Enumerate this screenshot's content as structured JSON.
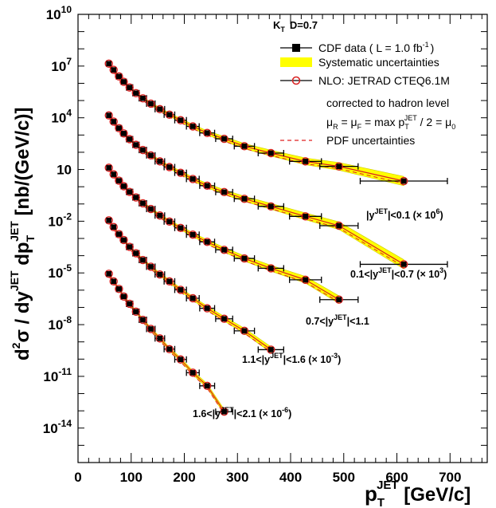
{
  "chart_data": {
    "type": "scatter",
    "title": "",
    "header": {
      "kt": "K",
      "kt_sub": "T",
      "d": "D=0.7"
    },
    "xlabel": {
      "main": "p",
      "sub": "T",
      "sup": "JET",
      "unit": " [GeV/c]"
    },
    "ylabel": {
      "d2": "d",
      "d2sup": "2",
      "sigma": "σ / dy",
      "jet1": "JET",
      "dpt": " dp",
      "t": "T",
      "jet2": "JET",
      "unit": " [nb/(GeV/c)]"
    },
    "xlim": [
      0,
      770
    ],
    "ylim_log10": [
      -16,
      10
    ],
    "x_scale": "linear",
    "y_scale": "log",
    "x_ticks": [
      "0",
      "100",
      "200",
      "300",
      "400",
      "500",
      "600",
      "700"
    ],
    "y_ticks": [
      {
        "base": "10",
        "exp": "10"
      },
      {
        "base": "10",
        "exp": "7"
      },
      {
        "base": "10",
        "exp": "4"
      },
      {
        "base": "10",
        "exp": ""
      },
      {
        "base": "10",
        "exp": "-2"
      },
      {
        "base": "10",
        "exp": "-5"
      },
      {
        "base": "10",
        "exp": "-8"
      },
      {
        "base": "10",
        "exp": "-11"
      },
      {
        "base": "10",
        "exp": "-14"
      }
    ],
    "legend": {
      "placement": "top-right",
      "entries": [
        {
          "kind": "data",
          "label": "CDF data ( L = 1.0 fb",
          "sup": "-1",
          "tail": ")"
        },
        {
          "kind": "band",
          "label": "Systematic uncertainties"
        },
        {
          "kind": "nlo",
          "label": "NLO: JETRAD CTEQ6.1M"
        },
        {
          "kind": "text",
          "label": "corrected to hadron level"
        },
        {
          "kind": "scale",
          "label": "μ_R = μ_F = max p_T^JET / 2 = μ_0"
        },
        {
          "kind": "pdf",
          "label": "PDF uncertainties"
        }
      ]
    },
    "colors": {
      "band": "#ffff00",
      "band_edge": "#cccc00",
      "nlo": "#d82020",
      "data": "#000000",
      "pdf": "#e02020"
    },
    "series": [
      {
        "name": "|y^JET|<0.1 (×10^6)",
        "label": {
          "pre": "|y",
          "sup1": "JET",
          "post": "|<0.1 (× 10",
          "sup2": "6",
          "tail": ")"
        },
        "x": [
          58,
          67,
          77,
          86,
          97,
          109,
          122,
          137,
          154,
          172,
          193,
          216,
          243,
          275,
          313,
          363,
          428,
          491,
          613
        ],
        "xerr": [
          4,
          4,
          5,
          5,
          6,
          6,
          7,
          8,
          9,
          10,
          11,
          12,
          14,
          16,
          19,
          24,
          30,
          36,
          82
        ],
        "log10_y": [
          7.14,
          6.78,
          6.4,
          6.09,
          5.76,
          5.43,
          5.13,
          4.82,
          4.5,
          4.18,
          3.86,
          3.5,
          3.12,
          2.78,
          2.35,
          1.95,
          1.47,
          1.18,
          0.33
        ]
      },
      {
        "name": "0.1<|y^JET|<0.7 (×10^3)",
        "label": {
          "pre": "0.1<|y",
          "sup1": "JET",
          "post": "|<0.7 (× 10",
          "sup2": "3",
          "tail": ")"
        },
        "x": [
          58,
          67,
          77,
          86,
          97,
          109,
          122,
          137,
          154,
          172,
          193,
          216,
          243,
          275,
          313,
          363,
          428,
          491,
          613
        ],
        "xerr": [
          4,
          4,
          5,
          5,
          6,
          6,
          7,
          8,
          9,
          10,
          11,
          12,
          14,
          16,
          19,
          24,
          30,
          36,
          82
        ],
        "log10_y": [
          4.14,
          3.78,
          3.4,
          3.09,
          2.76,
          2.43,
          2.13,
          1.82,
          1.47,
          1.14,
          0.81,
          0.45,
          0.06,
          -0.31,
          -0.7,
          -1.14,
          -1.72,
          -2.26,
          -4.5
        ]
      },
      {
        "name": "0.7<|y^JET|<1.1",
        "label": {
          "pre": "0.7<|y",
          "sup1": "JET",
          "post": "|<1.1",
          "sup2": "",
          "tail": ""
        },
        "x": [
          58,
          67,
          77,
          86,
          97,
          109,
          122,
          137,
          154,
          172,
          193,
          216,
          243,
          275,
          313,
          363,
          428,
          491
        ],
        "xerr": [
          4,
          4,
          5,
          5,
          6,
          6,
          7,
          8,
          9,
          10,
          11,
          12,
          14,
          16,
          19,
          24,
          30,
          36
        ],
        "log10_y": [
          1.1,
          0.72,
          0.35,
          0.03,
          -0.3,
          -0.62,
          -0.96,
          -1.29,
          -1.67,
          -2.02,
          -2.39,
          -2.78,
          -3.2,
          -3.66,
          -4.16,
          -4.73,
          -5.4,
          -6.55
        ]
      },
      {
        "name": "1.1<|y^JET|<1.6 (×10^-3)",
        "label": {
          "pre": "1.1<|y",
          "sup1": "JET",
          "post": "|<1.6 (× 10",
          "sup2": "-3",
          "tail": ")"
        },
        "x": [
          58,
          67,
          77,
          86,
          97,
          109,
          122,
          137,
          154,
          172,
          193,
          216,
          243,
          275,
          313,
          363
        ],
        "xerr": [
          4,
          4,
          5,
          5,
          6,
          6,
          7,
          8,
          9,
          10,
          11,
          12,
          14,
          16,
          19,
          24
        ],
        "log10_y": [
          -1.95,
          -2.34,
          -2.75,
          -3.09,
          -3.49,
          -3.86,
          -4.25,
          -4.64,
          -5.09,
          -5.49,
          -5.98,
          -6.47,
          -7.05,
          -7.66,
          -8.36,
          -9.45
        ]
      },
      {
        "name": "1.6<|y^JET|<2.1 (×10^-6)",
        "label": {
          "pre": "1.6<|y",
          "sup1": "JET",
          "post": "|<2.1 (× 10",
          "sup2": "-6",
          "tail": ")"
        },
        "x": [
          58,
          67,
          77,
          86,
          97,
          109,
          122,
          137,
          154,
          172,
          193,
          216,
          243,
          275
        ],
        "xerr": [
          4,
          4,
          5,
          5,
          6,
          6,
          7,
          8,
          9,
          10,
          11,
          12,
          14,
          16
        ],
        "log10_y": [
          -5.05,
          -5.49,
          -5.93,
          -6.37,
          -6.79,
          -7.25,
          -7.72,
          -8.25,
          -8.8,
          -9.42,
          -10.02,
          -10.79,
          -11.55,
          -13.05
        ]
      }
    ]
  }
}
